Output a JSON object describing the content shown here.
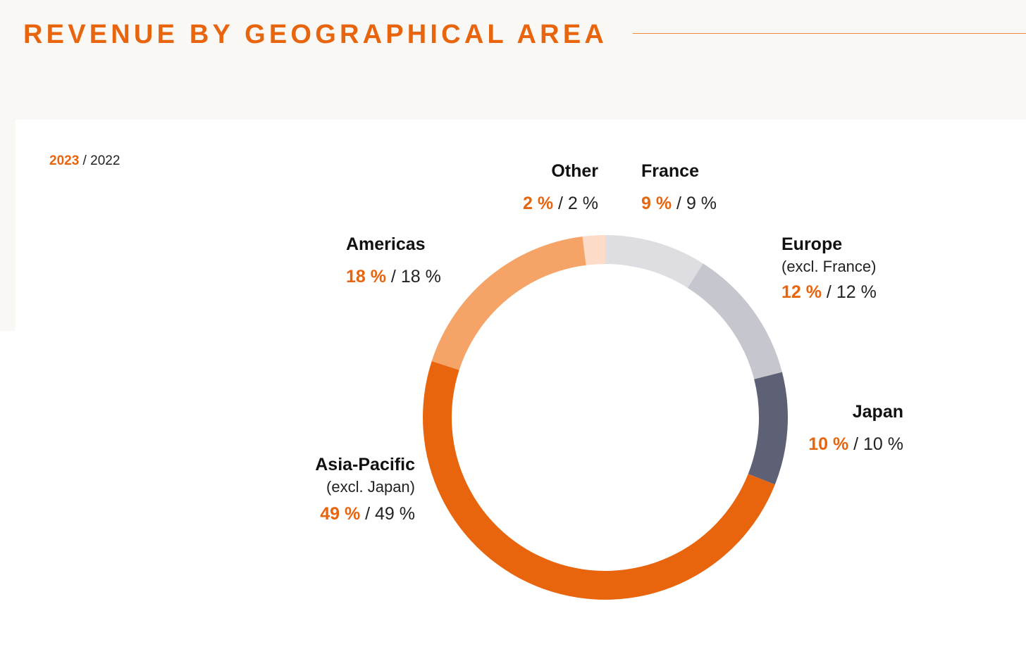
{
  "title": "REVENUE BY GEOGRAPHICAL AREA",
  "legend": {
    "current_year": "2023",
    "separator": " / ",
    "previous_year": "2022"
  },
  "colors": {
    "accent": "#e8650e",
    "background_band": "#f9f8f4"
  },
  "chart_data": {
    "type": "pie",
    "style": "donut",
    "series": [
      {
        "name": "2023",
        "values": [
          9,
          12,
          10,
          49,
          18,
          2
        ]
      },
      {
        "name": "2022",
        "values": [
          9,
          12,
          10,
          49,
          18,
          2
        ]
      }
    ],
    "segments": [
      {
        "name": "France",
        "sub": "",
        "value_2023": "9 %",
        "value_2022": "9 %",
        "value": 9,
        "color": "#dddde2"
      },
      {
        "name": "Europe",
        "sub": "(excl. France)",
        "value_2023": "12 %",
        "value_2022": "12 %",
        "value": 12,
        "color": "#c6c6cf"
      },
      {
        "name": "Japan",
        "sub": "",
        "value_2023": "10 %",
        "value_2022": "10 %",
        "value": 10,
        "color": "#5e6176"
      },
      {
        "name": "Asia-Pacific",
        "sub": "(excl. Japan)",
        "value_2023": "49 %",
        "value_2022": "49 %",
        "value": 49,
        "color": "#e8650e"
      },
      {
        "name": "Americas",
        "sub": "",
        "value_2023": "18 %",
        "value_2022": "18 %",
        "value": 18,
        "color": "#f5a366"
      },
      {
        "name": "Other",
        "sub": "",
        "value_2023": "2 %",
        "value_2022": "2 %",
        "value": 2,
        "color": "#fcdcc8"
      }
    ]
  }
}
